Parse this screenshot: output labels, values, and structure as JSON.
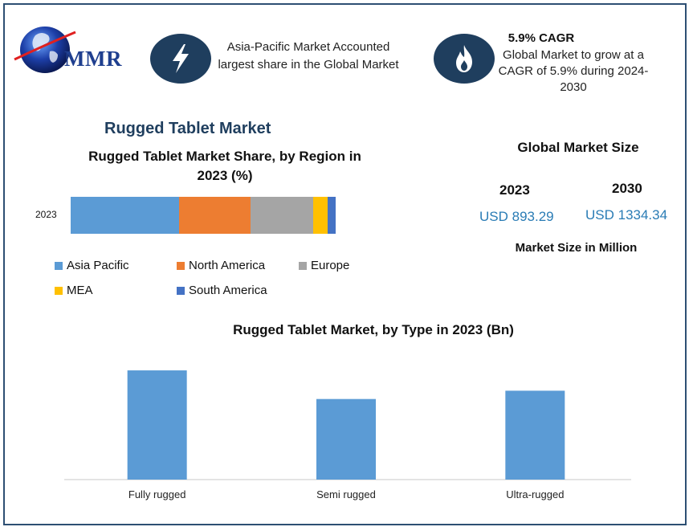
{
  "header": {
    "logo_text": "MMR",
    "info1_text": "Asia-Pacific Market Accounted largest share in the Global Market",
    "info2_title": "5.9% CAGR",
    "info2_text": "Global Market to grow at a CAGR of 5.9% during 2024-2030",
    "icon1": "lightning-icon",
    "icon2": "flame-icon"
  },
  "main_title": "Rugged Tablet Market",
  "market_size": {
    "title": "Global Market Size",
    "year1": "2023",
    "value1": "USD 893.29",
    "year2": "2030",
    "value2": "USD 1334.34",
    "unit_note": "Market Size in Million"
  },
  "chart_data": [
    {
      "type": "bar",
      "orientation": "horizontal-stacked",
      "title": "Rugged Tablet Market Share, by Region in 2023 (%)",
      "categories": [
        "2023"
      ],
      "xlim": [
        0,
        100
      ],
      "series": [
        {
          "name": "Asia Pacific",
          "values": [
            41
          ],
          "color": "#5b9bd5"
        },
        {
          "name": "North America",
          "values": [
            27
          ],
          "color": "#ed7d31"
        },
        {
          "name": "Europe",
          "values": [
            23.5
          ],
          "color": "#a5a5a5"
        },
        {
          "name": "MEA",
          "values": [
            5.5
          ],
          "color": "#ffc000"
        },
        {
          "name": "South America",
          "values": [
            3
          ],
          "color": "#4472c4"
        }
      ],
      "legend_position": "bottom"
    },
    {
      "type": "bar",
      "title": "Rugged Tablet Market, by Type in 2023 (Bn)",
      "categories": [
        "Fully rugged",
        "Semi rugged",
        "Ultra-rugged"
      ],
      "values": [
        145,
        107,
        118
      ],
      "ylim": [
        0,
        160
      ],
      "color": "#5b9bd5",
      "grid": false
    }
  ]
}
